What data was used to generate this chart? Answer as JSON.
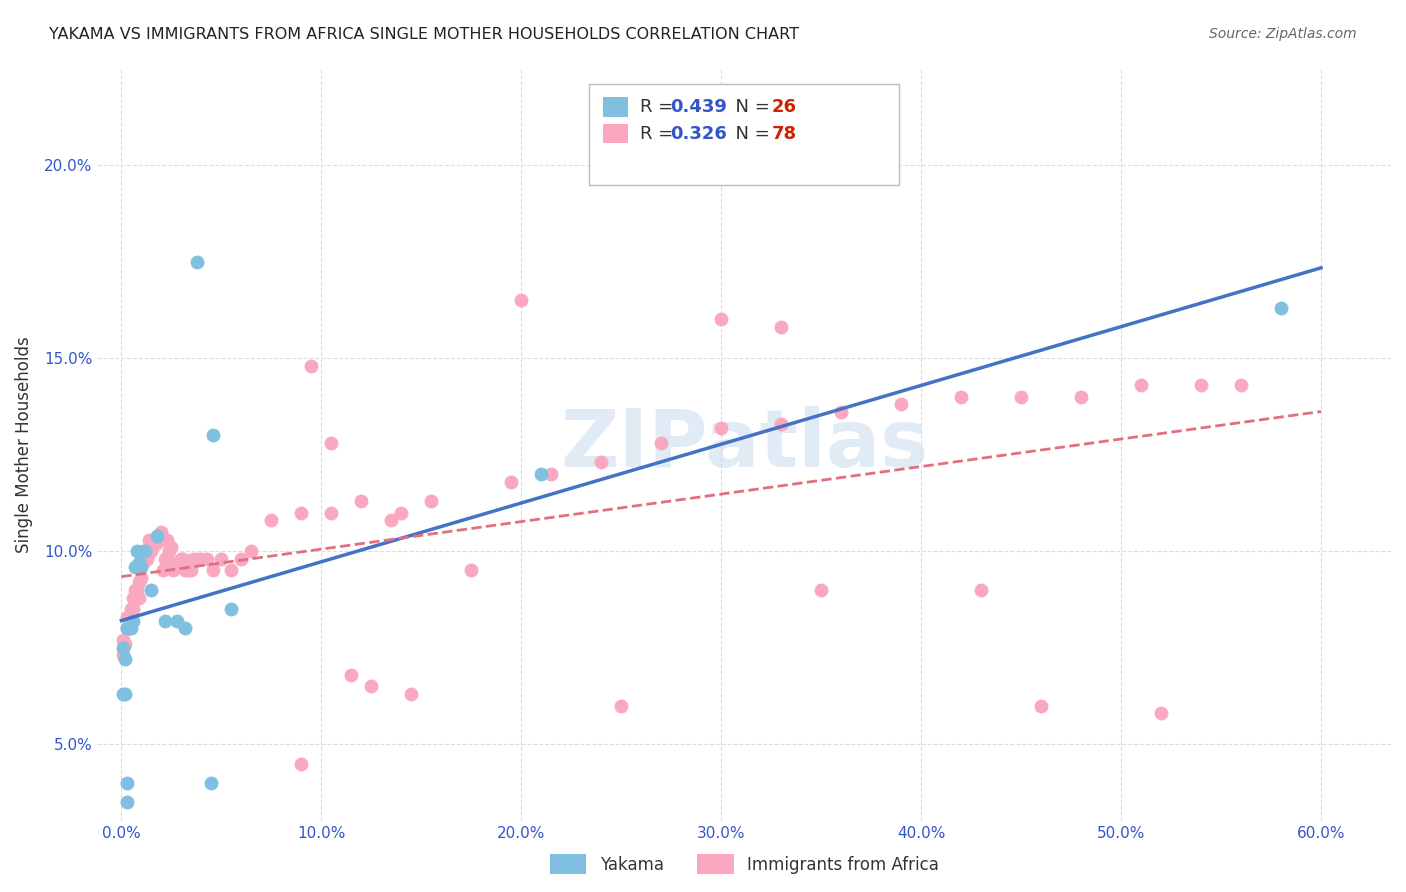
{
  "title": "YAKAMA VS IMMIGRANTS FROM AFRICA SINGLE MOTHER HOUSEHOLDS CORRELATION CHART",
  "source": "Source: ZipAtlas.com",
  "ylabel_label": "Single Mother Households",
  "xlim": [
    -0.012,
    0.635
  ],
  "ylim": [
    0.03,
    0.225
  ],
  "yakama_color": "#7fbfdf",
  "africa_color": "#f9a8c0",
  "line_blue": "#4472c4",
  "line_pink": "#e07080",
  "legend_R_color": "#3355cc",
  "legend_N_color": "#cc2200",
  "watermark": "ZIPatlas",
  "watermark_color": "#c5d8ef",
  "grid_color": "#dddddd",
  "yakama_x": [
    0.001,
    0.002,
    0.003,
    0.004,
    0.005,
    0.006,
    0.007,
    0.008,
    0.009,
    0.01,
    0.012,
    0.015,
    0.018,
    0.022,
    0.028,
    0.032,
    0.038,
    0.046,
    0.055,
    0.21,
    0.58,
    0.001,
    0.002,
    0.003,
    0.003,
    0.045
  ],
  "yakama_y": [
    0.075,
    0.072,
    0.08,
    0.08,
    0.08,
    0.082,
    0.096,
    0.1,
    0.097,
    0.096,
    0.1,
    0.09,
    0.104,
    0.082,
    0.082,
    0.08,
    0.175,
    0.13,
    0.085,
    0.12,
    0.163,
    0.063,
    0.063,
    0.04,
    0.035,
    0.04
  ],
  "africa_x": [
    0.001,
    0.001,
    0.002,
    0.003,
    0.003,
    0.004,
    0.005,
    0.005,
    0.006,
    0.006,
    0.007,
    0.007,
    0.008,
    0.009,
    0.009,
    0.01,
    0.011,
    0.011,
    0.012,
    0.013,
    0.014,
    0.015,
    0.016,
    0.017,
    0.018,
    0.019,
    0.02,
    0.021,
    0.022,
    0.023,
    0.024,
    0.025,
    0.026,
    0.027,
    0.028,
    0.029,
    0.03,
    0.031,
    0.032,
    0.033,
    0.034,
    0.035,
    0.036,
    0.038,
    0.04,
    0.043,
    0.046,
    0.05,
    0.055,
    0.06,
    0.065,
    0.075,
    0.09,
    0.105,
    0.12,
    0.14,
    0.155,
    0.175,
    0.195,
    0.215,
    0.24,
    0.27,
    0.3,
    0.33,
    0.36,
    0.39,
    0.42,
    0.45,
    0.48,
    0.51,
    0.54,
    0.56,
    0.2,
    0.3,
    0.35,
    0.43,
    0.46,
    0.52,
    0.095,
    0.105,
    0.115,
    0.125,
    0.135,
    0.145,
    0.33,
    0.25,
    0.09
  ],
  "africa_y": [
    0.073,
    0.077,
    0.076,
    0.08,
    0.083,
    0.08,
    0.082,
    0.085,
    0.085,
    0.088,
    0.088,
    0.09,
    0.09,
    0.088,
    0.092,
    0.093,
    0.097,
    0.1,
    0.098,
    0.098,
    0.103,
    0.1,
    0.102,
    0.103,
    0.102,
    0.103,
    0.105,
    0.095,
    0.098,
    0.103,
    0.1,
    0.101,
    0.095,
    0.097,
    0.096,
    0.097,
    0.098,
    0.098,
    0.095,
    0.095,
    0.097,
    0.095,
    0.098,
    0.098,
    0.098,
    0.098,
    0.095,
    0.098,
    0.095,
    0.098,
    0.1,
    0.108,
    0.11,
    0.11,
    0.113,
    0.11,
    0.113,
    0.095,
    0.118,
    0.12,
    0.123,
    0.128,
    0.132,
    0.133,
    0.136,
    0.138,
    0.14,
    0.14,
    0.14,
    0.143,
    0.143,
    0.143,
    0.165,
    0.16,
    0.09,
    0.09,
    0.06,
    0.058,
    0.148,
    0.128,
    0.068,
    0.065,
    0.108,
    0.063,
    0.158,
    0.06,
    0.045
  ]
}
